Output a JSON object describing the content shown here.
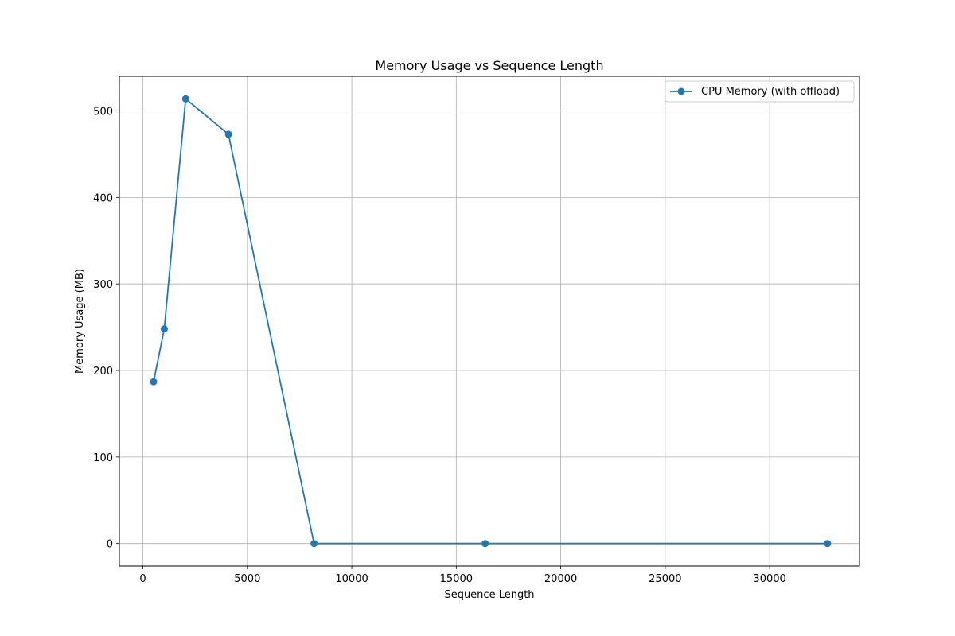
{
  "chart_data": {
    "type": "line",
    "title": "Memory Usage vs Sequence Length",
    "xlabel": "Sequence Length",
    "ylabel": "Memory Usage (MB)",
    "xlim": [
      -1125,
      34300
    ],
    "ylim": [
      -26,
      540
    ],
    "xticks": [
      0,
      5000,
      10000,
      15000,
      20000,
      25000,
      30000
    ],
    "yticks": [
      0,
      100,
      200,
      300,
      400,
      500
    ],
    "grid": true,
    "legend_position": "top-right",
    "series": [
      {
        "name": "CPU Memory (with offload)",
        "color": "#1f77b4",
        "marker": "circle",
        "x": [
          512,
          1024,
          2048,
          4096,
          8192,
          16384,
          32768
        ],
        "y": [
          187,
          248,
          514,
          473,
          0,
          0,
          0
        ]
      }
    ]
  }
}
